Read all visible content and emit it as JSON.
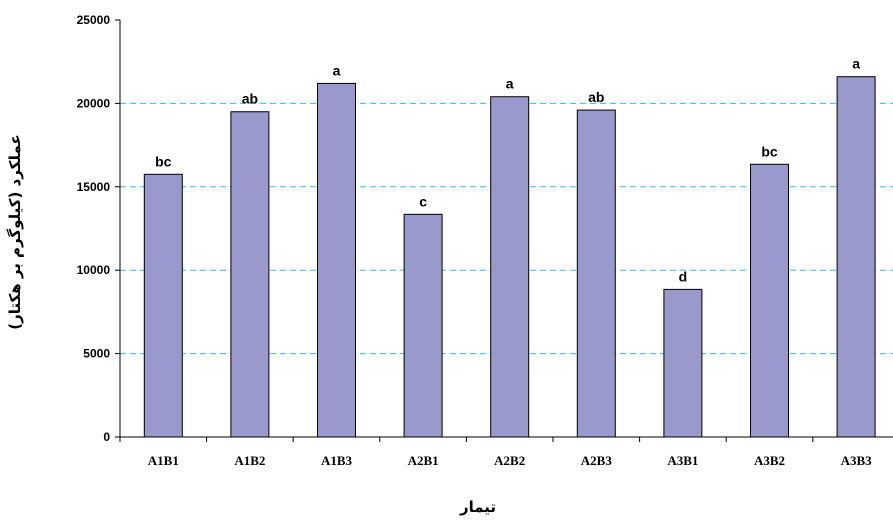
{
  "chart_data": {
    "type": "bar",
    "categories": [
      "A1B1",
      "A1B2",
      "A1B3",
      "A2B1",
      "A2B2",
      "A2B3",
      "A3B1",
      "A3B2",
      "A3B3"
    ],
    "values": [
      15750,
      19500,
      21200,
      13350,
      20400,
      19600,
      8850,
      16350,
      21600
    ],
    "letters": [
      "bc",
      "ab",
      "a",
      "c",
      "a",
      "ab",
      "d",
      "bc",
      "a"
    ],
    "xlabel": "تیمار",
    "ylabel": "عملکرد (کیلوگرم بر هکتار)",
    "ylim": [
      0,
      25000
    ],
    "yticks": [
      0,
      5000,
      10000,
      15000,
      20000,
      25000
    ],
    "grid": true,
    "bar_color": "#9999cc",
    "grid_color": "#33bbee"
  }
}
